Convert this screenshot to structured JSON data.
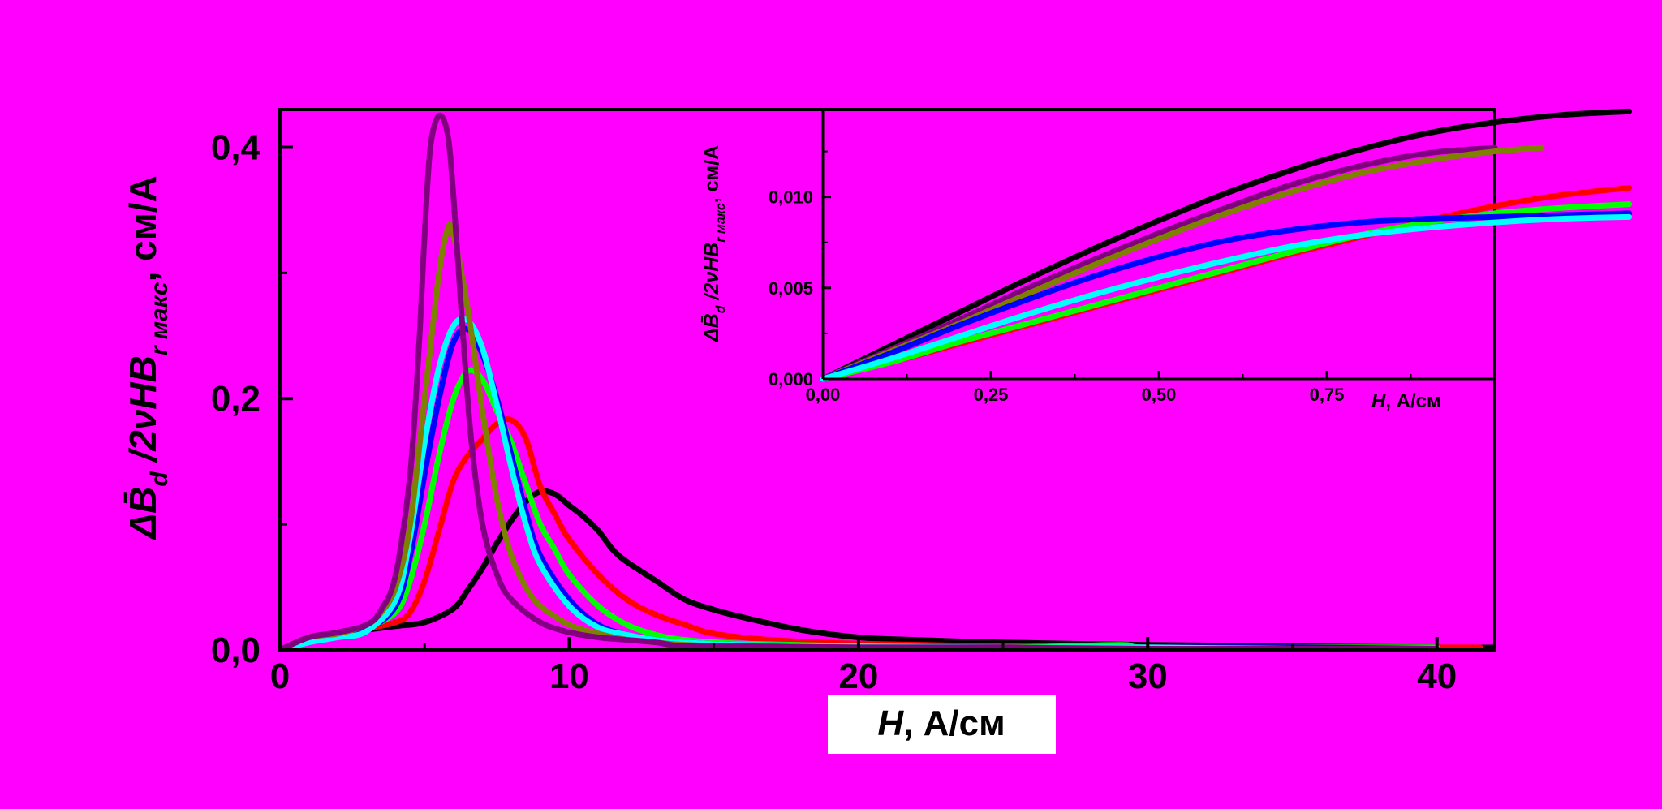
{
  "chart_data": [
    {
      "type": "line",
      "title": "",
      "xlabel": "H, А/см",
      "xlabel_var": "H",
      "xlabel_rest": ", А/см",
      "ylabel_text": "ΔB̄d /2νHBr макс, см/А",
      "ylabel_parts": [
        "ΔB̄",
        "d",
        " /2νHB",
        "r макс",
        ", см/А"
      ],
      "xlim": [
        0,
        42
      ],
      "ylim": [
        0,
        0.43
      ],
      "x_ticks": [
        0,
        10,
        20,
        30,
        40
      ],
      "x_tick_labels": [
        "0",
        "10",
        "20",
        "30",
        "40"
      ],
      "y_ticks": [
        0.0,
        0.2,
        0.4
      ],
      "y_tick_labels": [
        "0,0",
        "0,2",
        "0,4"
      ],
      "y_minor_ticks": [
        0.1,
        0.3
      ],
      "series": [
        {
          "color": "#000000",
          "x": [
            0,
            1,
            2,
            3,
            4,
            5,
            6,
            6.5,
            7,
            7.5,
            8,
            8.5,
            9,
            9.5,
            10,
            10.5,
            11,
            11.5,
            12,
            13,
            14,
            15,
            16,
            18,
            20,
            22,
            25,
            30,
            35,
            40,
            42
          ],
          "y": [
            0.0,
            0.01,
            0.013,
            0.016,
            0.019,
            0.022,
            0.033,
            0.048,
            0.065,
            0.085,
            0.103,
            0.118,
            0.126,
            0.124,
            0.115,
            0.106,
            0.095,
            0.08,
            0.07,
            0.055,
            0.04,
            0.032,
            0.026,
            0.016,
            0.01,
            0.008,
            0.006,
            0.004,
            0.003,
            0.002,
            0.002
          ]
        },
        {
          "color": "#ff0000",
          "x": [
            0,
            1,
            2,
            3,
            4,
            4.5,
            5,
            5.5,
            6,
            6.5,
            7,
            7.5,
            8,
            8.5,
            9,
            9.5,
            10,
            11,
            12,
            13,
            14,
            15,
            17,
            20,
            25,
            30,
            35,
            40,
            41.5
          ],
          "y": [
            0.0,
            0.01,
            0.013,
            0.017,
            0.022,
            0.03,
            0.055,
            0.095,
            0.135,
            0.155,
            0.168,
            0.18,
            0.183,
            0.168,
            0.13,
            0.108,
            0.088,
            0.06,
            0.04,
            0.028,
            0.02,
            0.013,
            0.008,
            0.005,
            0.003,
            0.002,
            0.002,
            0.002,
            0.002
          ]
        },
        {
          "color": "#00ff00",
          "x": [
            0,
            1,
            2,
            3,
            4,
            4.5,
            5,
            5.5,
            6,
            6.5,
            7,
            7.5,
            8,
            8.5,
            9,
            9.5,
            10,
            11,
            12,
            13,
            14,
            16,
            20,
            25,
            29,
            30,
            35,
            40
          ],
          "y": [
            0.0,
            0.01,
            0.013,
            0.018,
            0.03,
            0.055,
            0.1,
            0.155,
            0.2,
            0.222,
            0.215,
            0.19,
            0.165,
            0.132,
            0.1,
            0.08,
            0.06,
            0.035,
            0.02,
            0.012,
            0.008,
            0.005,
            0.003,
            0.002,
            0.004,
            0.002,
            0.002,
            0.002
          ]
        },
        {
          "color": "#0000ff",
          "x": [
            0,
            1,
            2,
            3,
            4,
            4.5,
            5,
            5.5,
            6,
            6.5,
            7,
            7.5,
            8,
            8.5,
            9,
            10,
            11,
            12,
            13,
            14,
            16,
            20,
            25,
            30,
            35,
            40
          ],
          "y": [
            0.0,
            0.008,
            0.012,
            0.016,
            0.035,
            0.075,
            0.14,
            0.2,
            0.245,
            0.255,
            0.235,
            0.2,
            0.155,
            0.11,
            0.075,
            0.04,
            0.02,
            0.012,
            0.008,
            0.006,
            0.004,
            0.003,
            0.002,
            0.002,
            0.002,
            0.001
          ]
        },
        {
          "color": "#00ffff",
          "x": [
            0,
            1,
            2,
            3,
            4,
            4.5,
            5,
            5.5,
            6,
            6.5,
            7,
            7.5,
            8,
            8.5,
            9,
            10,
            11,
            12,
            13,
            14,
            16,
            20,
            25,
            30,
            35,
            40
          ],
          "y": [
            0.0,
            0.006,
            0.01,
            0.015,
            0.04,
            0.09,
            0.165,
            0.225,
            0.258,
            0.262,
            0.24,
            0.195,
            0.145,
            0.1,
            0.068,
            0.035,
            0.018,
            0.012,
            0.008,
            0.006,
            0.004,
            0.003,
            0.002,
            0.002,
            0.001,
            0.001
          ]
        },
        {
          "color": "#808000",
          "x": [
            0,
            1,
            2,
            3,
            3.5,
            4,
            4.5,
            5,
            5.5,
            5.8,
            6,
            6.5,
            7,
            7.5,
            8,
            8.5,
            9,
            10,
            11,
            12,
            13,
            14,
            16,
            20,
            25,
            30,
            35,
            40
          ],
          "y": [
            0.0,
            0.01,
            0.013,
            0.02,
            0.03,
            0.05,
            0.1,
            0.2,
            0.3,
            0.335,
            0.33,
            0.27,
            0.19,
            0.12,
            0.075,
            0.05,
            0.035,
            0.02,
            0.013,
            0.008,
            0.006,
            0.004,
            0.003,
            0.002,
            0.002,
            0.001,
            0.001,
            0.001
          ]
        },
        {
          "color": "#800080",
          "x": [
            0,
            1,
            2,
            3,
            3.5,
            4,
            4.5,
            4.8,
            5,
            5.2,
            5.5,
            5.8,
            6,
            6.3,
            6.6,
            7,
            7.5,
            8,
            9,
            10,
            11,
            12,
            13,
            13.5,
            14,
            16,
            20,
            25,
            30,
            35,
            40
          ],
          "y": [
            0.0,
            0.01,
            0.014,
            0.02,
            0.032,
            0.06,
            0.14,
            0.24,
            0.33,
            0.4,
            0.425,
            0.41,
            0.36,
            0.26,
            0.17,
            0.1,
            0.06,
            0.04,
            0.022,
            0.014,
            0.01,
            0.008,
            0.006,
            0.004,
            0.003,
            0.003,
            0.002,
            0.002,
            0.001,
            0.001,
            0.001
          ]
        }
      ]
    },
    {
      "type": "line",
      "title": "",
      "xlabel": "H, А/см",
      "xlabel_var": "H",
      "xlabel_rest": ", А/см",
      "ylabel_text": "ΔB̄d /2νHBr макс, см/А",
      "ylabel_parts": [
        "ΔB̄",
        "d",
        " /2νHB",
        "r макс",
        ", см/А"
      ],
      "xlim": [
        0,
        1.0
      ],
      "ylim": [
        0,
        0.0148
      ],
      "x_ticks": [
        0.0,
        0.25,
        0.5,
        0.75
      ],
      "x_tick_labels": [
        "0,00",
        "0,25",
        "0,50",
        "0,75"
      ],
      "y_ticks": [
        0.0,
        0.005,
        0.01
      ],
      "y_tick_labels": [
        "0,000",
        "0,005",
        "0,010"
      ],
      "series": [
        {
          "color": "#000000",
          "x": [
            0,
            0.1,
            0.2,
            0.3,
            0.4,
            0.5,
            0.6,
            0.7,
            0.8,
            0.9,
            1.0,
            1.1,
            1.2
          ],
          "y": [
            0,
            0.0018,
            0.0036,
            0.0054,
            0.0071,
            0.0087,
            0.0102,
            0.0115,
            0.0126,
            0.0135,
            0.0141,
            0.0145,
            0.0147
          ]
        },
        {
          "color": "#800080",
          "x": [
            0,
            0.1,
            0.2,
            0.3,
            0.4,
            0.5,
            0.6,
            0.7,
            0.8,
            0.9,
            1.0
          ],
          "y": [
            0,
            0.0016,
            0.0032,
            0.0049,
            0.0065,
            0.008,
            0.0094,
            0.0107,
            0.0117,
            0.0124,
            0.0127
          ]
        },
        {
          "color": "#808000",
          "x": [
            0,
            0.1,
            0.2,
            0.3,
            0.4,
            0.5,
            0.6,
            0.7,
            0.8,
            0.9,
            1.0,
            1.07
          ],
          "y": [
            0,
            0.0015,
            0.003,
            0.0046,
            0.0062,
            0.0077,
            0.0091,
            0.0103,
            0.0113,
            0.012,
            0.0125,
            0.0127
          ]
        },
        {
          "color": "#ff0000",
          "x": [
            0,
            0.1,
            0.2,
            0.3,
            0.4,
            0.5,
            0.6,
            0.7,
            0.8,
            0.9,
            1.0,
            1.1,
            1.2
          ],
          "y": [
            0,
            0.0009,
            0.0019,
            0.0029,
            0.0039,
            0.0049,
            0.0059,
            0.0069,
            0.0078,
            0.0087,
            0.0095,
            0.0101,
            0.0105
          ]
        },
        {
          "color": "#00ff00",
          "x": [
            0,
            0.1,
            0.2,
            0.3,
            0.4,
            0.5,
            0.6,
            0.7,
            0.8,
            0.9,
            1.0,
            1.1,
            1.2
          ],
          "y": [
            0,
            0.0009,
            0.002,
            0.003,
            0.004,
            0.005,
            0.006,
            0.007,
            0.0079,
            0.0086,
            0.0091,
            0.0094,
            0.0096
          ]
        },
        {
          "color": "#0000ff",
          "x": [
            0,
            0.1,
            0.2,
            0.3,
            0.4,
            0.5,
            0.6,
            0.7,
            0.8,
            0.9,
            1.0,
            1.1,
            1.2
          ],
          "y": [
            0,
            0.0014,
            0.0029,
            0.0043,
            0.0056,
            0.0067,
            0.0076,
            0.0082,
            0.0086,
            0.0088,
            0.0089,
            0.009,
            0.0091
          ]
        },
        {
          "color": "#00ffff",
          "x": [
            0,
            0.1,
            0.2,
            0.3,
            0.4,
            0.5,
            0.6,
            0.7,
            0.8,
            0.9,
            1.0,
            1.1,
            1.2
          ],
          "y": [
            0,
            0.0011,
            0.0023,
            0.0035,
            0.0046,
            0.0056,
            0.0065,
            0.0073,
            0.0079,
            0.0083,
            0.0086,
            0.0088,
            0.0089
          ]
        }
      ]
    }
  ]
}
